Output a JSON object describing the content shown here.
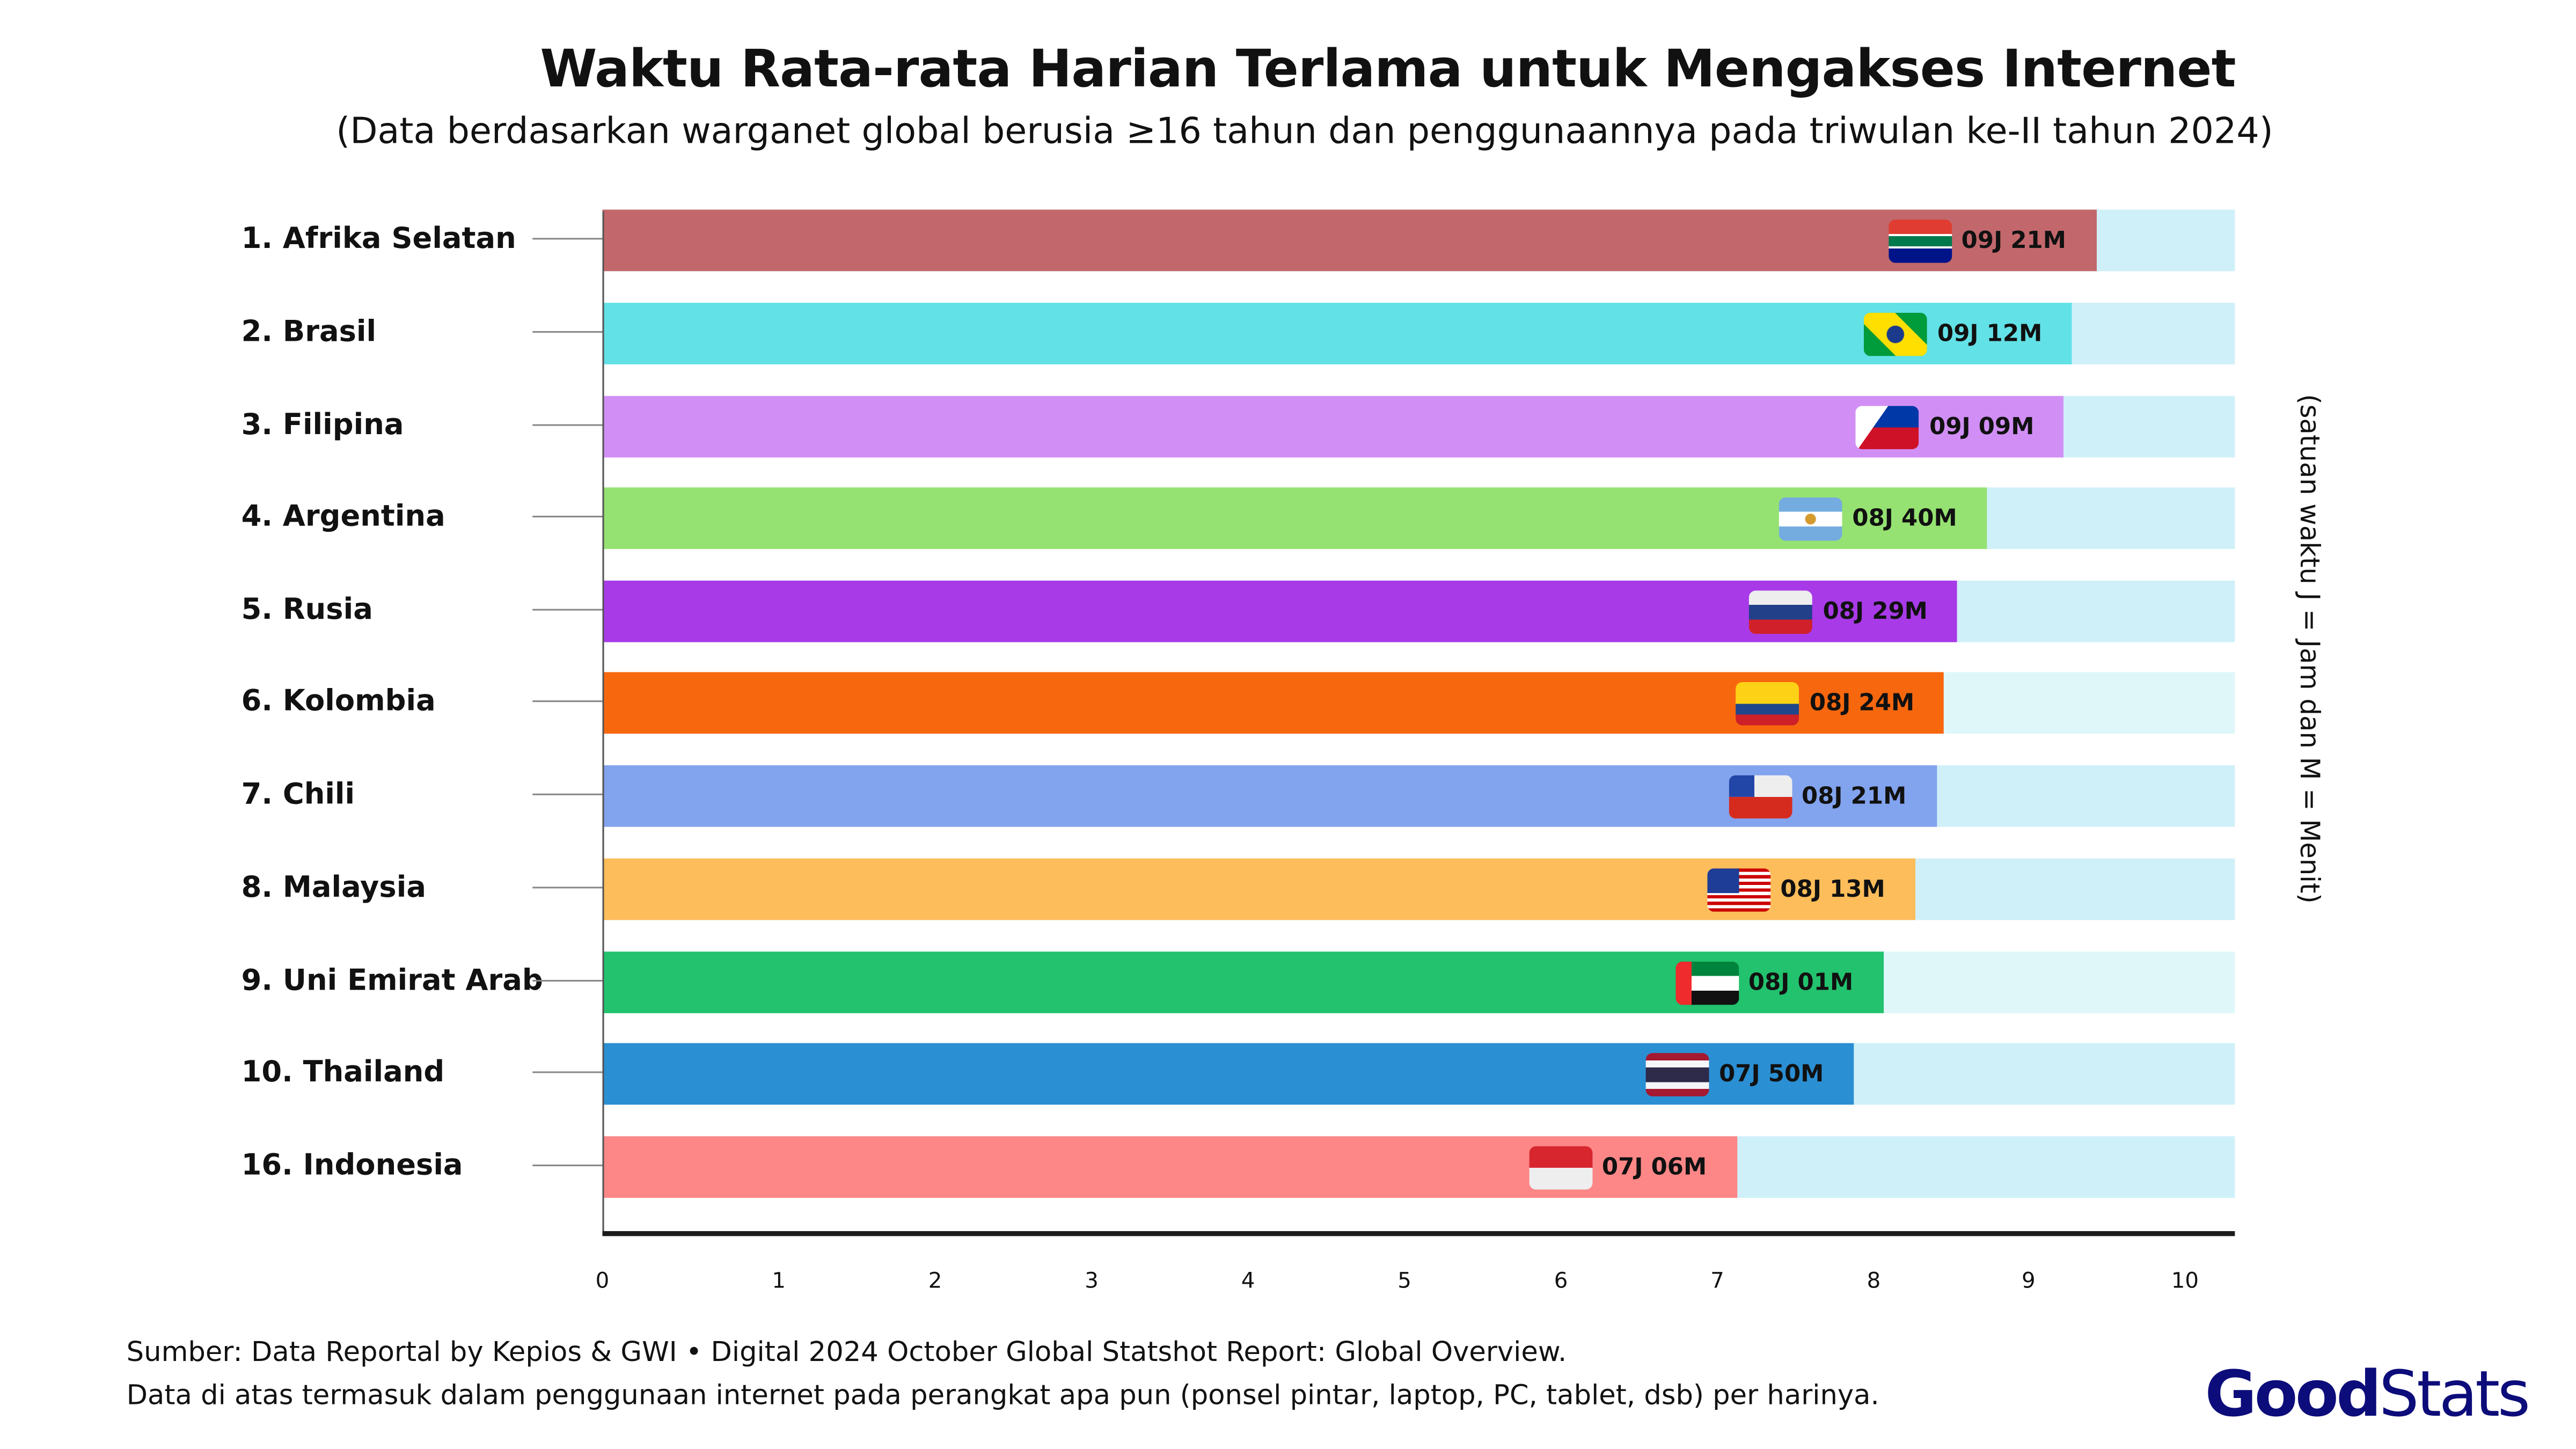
{
  "chart_data": {
    "type": "bar",
    "orientation": "horizontal",
    "title": "Waktu Rata-rata Harian Terlama untuk Mengakses Internet",
    "subtitle": "(Data berdasarkan warganet global berusia ≥16 tahun dan penggunaannya pada triwulan ke-II tahun 2024)",
    "unit_note": "(satuan waktu J = Jam dan M = Menit)",
    "categories": [
      "1. Afrika Selatan",
      "2. Brasil",
      "3. Filipina",
      "4. Argentina",
      "5. Rusia",
      "6. Kolombia",
      "7. Chili",
      "8. Malaysia",
      "9. Uni Emirat Arab",
      "10. Thailand",
      "16. Indonesia"
    ],
    "value_labels": [
      "09J 21M",
      "09J 12M",
      "09J 09M",
      "08J 40M",
      "08J 29M",
      "08J 24M",
      "08J 21M",
      "08J 13M",
      "08J 01M",
      "07J 50M",
      "07J 06M"
    ],
    "values_hours": [
      9.35,
      9.2,
      9.15,
      8.667,
      8.483,
      8.4,
      8.35,
      8.217,
      8.017,
      7.833,
      7.1
    ],
    "flags": [
      "south-africa",
      "brazil",
      "philippines",
      "argentina",
      "russia",
      "colombia",
      "chile",
      "malaysia",
      "uae",
      "thailand",
      "indonesia"
    ],
    "colors": [
      "#c2686c",
      "#62e1e6",
      "#d18ff5",
      "#95e272",
      "#a83ae8",
      "#f7670e",
      "#82a3ee",
      "#fdbd5a",
      "#22c26e",
      "#2b8fd3",
      "#fd8787"
    ],
    "track_colors": [
      "#cff0f9",
      "#cff0f9",
      "#cff0f9",
      "#cff0f9",
      "#cff0f9",
      "#e0f7f9",
      "#cff0f9",
      "#cff0f9",
      "#e0f7f9",
      "#cff0f9",
      "#cff0f9"
    ],
    "xlim": [
      0,
      10
    ],
    "xticks": [
      "0",
      "1",
      "2",
      "3",
      "4",
      "5",
      "6",
      "7",
      "8",
      "9",
      "10"
    ],
    "grid": false
  },
  "footer": {
    "source": "Sumber: Data Reportal by Kepios & GWI • Digital 2024 October Global Statshot Report: Global Overview.",
    "note": "Data di atas termasuk dalam penggunaan internet pada perangkat apa pun (ponsel pintar, laptop, PC, tablet, dsb) per harinya."
  },
  "logo": {
    "bold": "Good",
    "light": "Stats",
    "color": "#0c0c7a"
  }
}
